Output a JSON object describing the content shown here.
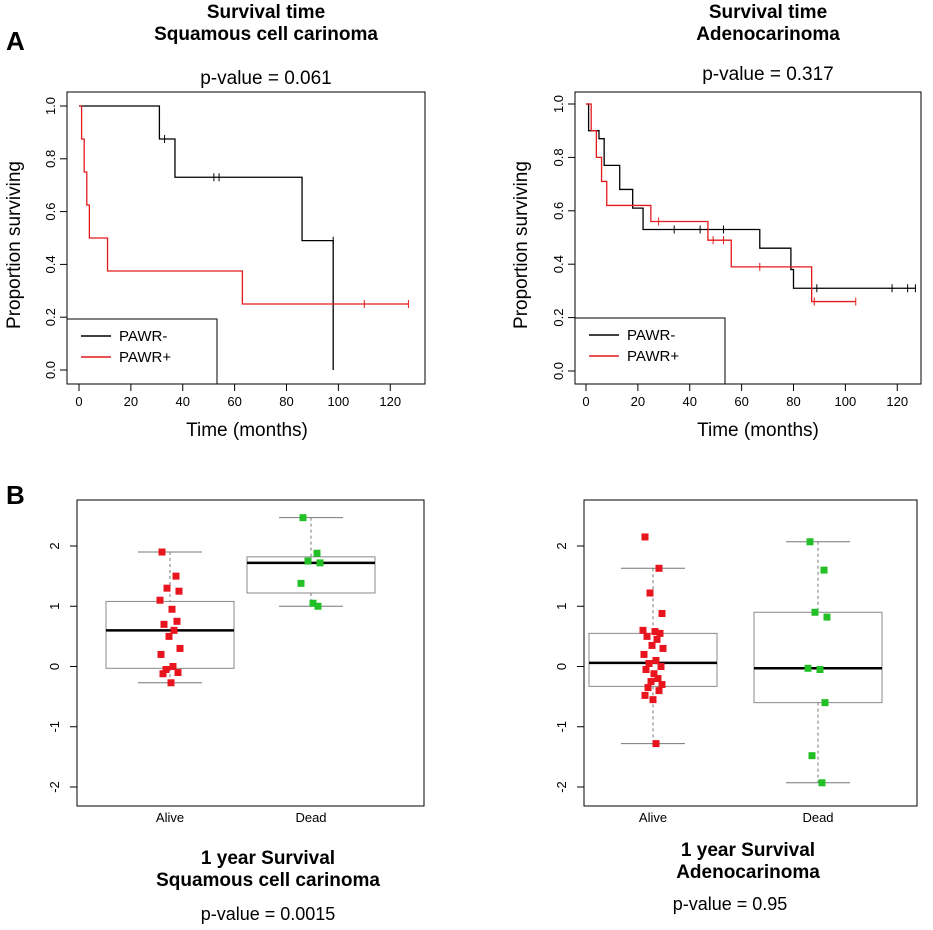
{
  "panels": {
    "a": "A",
    "b": "B"
  },
  "km_left": {
    "title1": "Survival time",
    "title2": "Squamous cell carinoma",
    "pvalue": "p-value = 0.061",
    "xlabel": "Time (months)",
    "ylabel": "Proportion surviving"
  },
  "km_right": {
    "title1": "Survival time",
    "title2": "Adenocarinoma",
    "pvalue": "p-value = 0.317",
    "xlabel": "Time (months)",
    "ylabel": "Proportion surviving"
  },
  "box_left": {
    "title1": "1 year Survival",
    "title2": "Squamous cell carinoma",
    "pvalue": "p-value = 0.0015"
  },
  "box_right": {
    "title1": "1 year Survival",
    "title2": "Adenocarinoma",
    "pvalue": "p-value = 0.95"
  },
  "colors": {
    "neg": "#000000",
    "pos": "#e31a1c",
    "alive": "#e8141e",
    "dead": "#22c026",
    "box": "#888888"
  },
  "chart_data": [
    {
      "type": "line",
      "title": "Survival time Squamous cell carinoma",
      "xlabel": "Time (months)",
      "ylabel": "Proportion surviving",
      "xlim": [
        0,
        128
      ],
      "ylim": [
        0,
        1
      ],
      "xticks": [
        "0",
        "20",
        "40",
        "60",
        "80",
        "100",
        "120"
      ],
      "yticks": [
        "0.0",
        "0.2",
        "0.4",
        "0.6",
        "0.8",
        "1.0"
      ],
      "legend": "bottom-left",
      "series": [
        {
          "name": "PAWR-",
          "color": "#000000",
          "steps": [
            [
              0,
              1.0
            ],
            [
              31,
              0.875
            ],
            [
              37,
              0.73
            ],
            [
              86,
              0.49
            ],
            [
              98,
              0.0
            ]
          ],
          "end": 98,
          "censor": [
            [
              33,
              0.875
            ],
            [
              52,
              0.73
            ],
            [
              54,
              0.73
            ],
            [
              98,
              0.49
            ]
          ]
        },
        {
          "name": "PAWR+",
          "color": "#e31a1c",
          "steps": [
            [
              0,
              1.0
            ],
            [
              1,
              0.875
            ],
            [
              2,
              0.75
            ],
            [
              3,
              0.625
            ],
            [
              4,
              0.5
            ],
            [
              11,
              0.375
            ],
            [
              63,
              0.25
            ]
          ],
          "end": 127,
          "censor": [
            [
              110,
              0.25
            ],
            [
              127,
              0.25
            ]
          ]
        }
      ]
    },
    {
      "type": "line",
      "title": "Survival time Adenocarinoma",
      "xlabel": "Time (months)",
      "ylabel": "Proportion surviving",
      "xlim": [
        0,
        128
      ],
      "ylim": [
        0,
        1
      ],
      "xticks": [
        "0",
        "20",
        "40",
        "60",
        "80",
        "100",
        "120"
      ],
      "yticks": [
        "0.0",
        "0.2",
        "0.4",
        "0.6",
        "0.8",
        "1.0"
      ],
      "legend": "bottom-left",
      "series": [
        {
          "name": "PAWR-",
          "color": "#000000",
          "steps": [
            [
              0,
              1.0
            ],
            [
              1,
              0.9
            ],
            [
              5,
              0.87
            ],
            [
              7,
              0.77
            ],
            [
              13,
              0.68
            ],
            [
              18,
              0.61
            ],
            [
              22,
              0.53
            ],
            [
              67,
              0.46
            ],
            [
              79,
              0.38
            ],
            [
              80,
              0.31
            ]
          ],
          "end": 127,
          "censor": [
            [
              34,
              0.53
            ],
            [
              44,
              0.53
            ],
            [
              53,
              0.53
            ],
            [
              89,
              0.31
            ],
            [
              118,
              0.31
            ],
            [
              124,
              0.31
            ],
            [
              127,
              0.31
            ]
          ]
        },
        {
          "name": "PAWR+",
          "color": "#e31a1c",
          "steps": [
            [
              0,
              1.0
            ],
            [
              2,
              0.9
            ],
            [
              4,
              0.8
            ],
            [
              6,
              0.71
            ],
            [
              8,
              0.62
            ],
            [
              25,
              0.56
            ],
            [
              47,
              0.49
            ],
            [
              56,
              0.39
            ],
            [
              87,
              0.26
            ]
          ],
          "end": 104,
          "censor": [
            [
              28,
              0.56
            ],
            [
              49,
              0.49
            ],
            [
              53,
              0.49
            ],
            [
              67,
              0.39
            ],
            [
              88,
              0.26
            ],
            [
              104,
              0.26
            ]
          ]
        }
      ]
    },
    {
      "type": "box",
      "title": "1 year Survival Squamous cell carinoma",
      "categories": [
        "Alive",
        "Dead"
      ],
      "ylim": [
        -2.2,
        2.5
      ],
      "yticks": [
        "2",
        "1",
        "0",
        "-1",
        "-2"
      ],
      "boxes": [
        {
          "category": "Alive",
          "whisker_low": -0.27,
          "q1": -0.03,
          "median": 0.6,
          "q3": 1.08,
          "whisker_high": 1.9,
          "points": [
            1.9,
            1.5,
            1.3,
            1.25,
            1.1,
            0.95,
            0.75,
            0.7,
            0.6,
            0.5,
            0.3,
            0.2,
            0.0,
            -0.05,
            -0.1,
            -0.12,
            -0.27
          ]
        },
        {
          "category": "Dead",
          "whisker_low": 1.0,
          "q1": 1.22,
          "median": 1.72,
          "q3": 1.82,
          "whisker_high": 2.47,
          "points": [
            2.47,
            1.88,
            1.75,
            1.72,
            1.38,
            1.05,
            1.0
          ]
        }
      ]
    },
    {
      "type": "box",
      "title": "1 year Survival Adenocarinoma",
      "categories": [
        "Alive",
        "Dead"
      ],
      "ylim": [
        -2.2,
        2.5
      ],
      "yticks": [
        "2",
        "1",
        "0",
        "-1",
        "-2"
      ],
      "boxes": [
        {
          "category": "Alive",
          "whisker_low": -1.28,
          "q1": -0.33,
          "median": 0.06,
          "q3": 0.55,
          "whisker_high": 1.63,
          "points": [
            2.15,
            1.63,
            1.22,
            0.88,
            0.6,
            0.58,
            0.55,
            0.5,
            0.45,
            0.35,
            0.3,
            0.2,
            0.1,
            0.05,
            0.0,
            -0.05,
            -0.12,
            -0.2,
            -0.25,
            -0.3,
            -0.35,
            -0.4,
            -0.48,
            -0.55,
            -1.28
          ]
        },
        {
          "category": "Dead",
          "whisker_low": -1.93,
          "q1": -0.6,
          "median": -0.03,
          "q3": 0.9,
          "whisker_high": 2.07,
          "points": [
            2.07,
            1.6,
            0.9,
            0.82,
            -0.03,
            -0.05,
            -0.6,
            -1.48,
            -1.93
          ]
        }
      ]
    }
  ]
}
